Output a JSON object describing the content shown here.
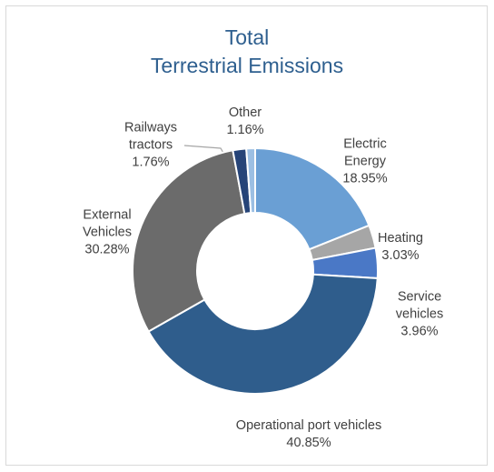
{
  "chart_data": {
    "type": "donut",
    "title": "Total\nTerrestrial Emissions",
    "categories": [
      "Electric\nEnergy",
      "Heating",
      "Service\nvehicles",
      "Operational port vehicles",
      "External\nVehicles",
      "Railways\ntractors",
      "Other"
    ],
    "values": [
      18.95,
      3.03,
      3.96,
      40.85,
      30.28,
      1.76,
      1.16
    ],
    "value_labels": [
      "18.95%",
      "3.03%",
      "3.96%",
      "40.85%",
      "30.28%",
      "1.76%",
      "1.16%"
    ],
    "colors": [
      "#6a9fd4",
      "#a6a6a6",
      "#4a78c6",
      "#2f5d8c",
      "#6b6b6b",
      "#264478",
      "#9cbfe3"
    ]
  }
}
